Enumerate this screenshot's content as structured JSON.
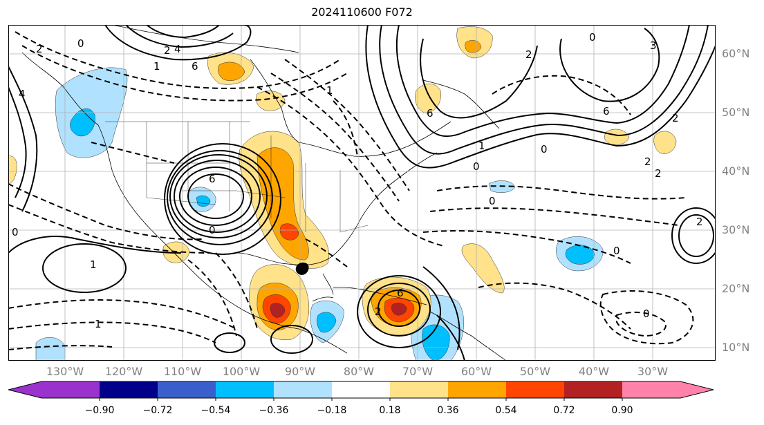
{
  "title": "2024110600 F072",
  "lon_labels": [
    "130°W",
    "120°W",
    "110°W",
    "100°W",
    "90°W",
    "80°W",
    "70°W",
    "60°W",
    "50°W",
    "40°W",
    "30°W"
  ],
  "lat_labels": [
    "60°N",
    "50°N",
    "40°N",
    "30°N",
    "20°N",
    "10°N"
  ],
  "colorbar": {
    "colors": [
      "#9a32cd",
      "#00008b",
      "#3a5fcd",
      "#00bfff",
      "#b0e2ff",
      "#ffffff",
      "#ffe28a",
      "#ffa500",
      "#ff4500",
      "#b22222",
      "#ff82ab"
    ],
    "labels": [
      "−0.90",
      "−0.72",
      "−0.54",
      "−0.36",
      "−0.18",
      "0.18",
      "0.36",
      "0.54",
      "0.72",
      "0.90"
    ]
  },
  "contour_labels": [
    "0",
    "2",
    "4",
    "6",
    "1",
    "0",
    "0",
    "6",
    "2",
    "0",
    "2",
    "1",
    "0",
    "2",
    "4",
    "6",
    "1",
    "6",
    "1",
    "2",
    "0",
    "2",
    "0",
    "0",
    "1",
    "0",
    "6",
    "2",
    "3",
    "2"
  ]
}
